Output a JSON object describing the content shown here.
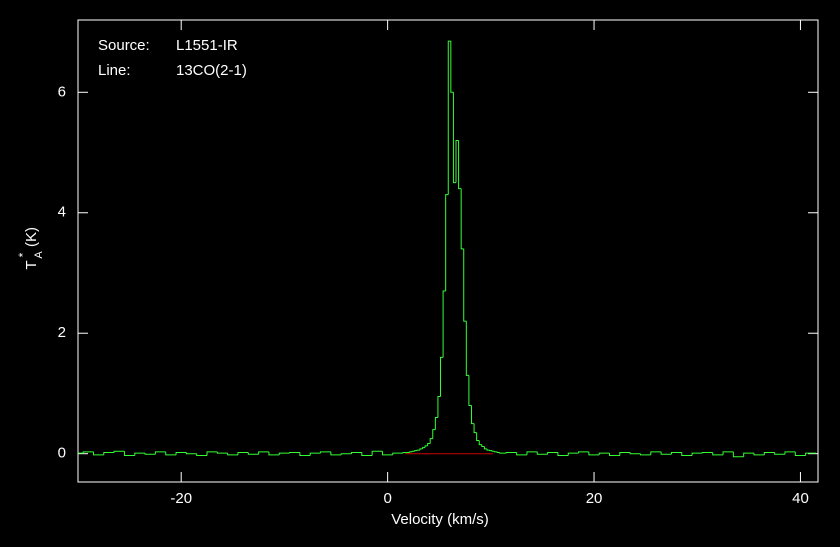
{
  "chart_data": {
    "type": "step",
    "xlabel": "Velocity (km/s)",
    "ylabel": {
      "main": "T",
      "sup": "*",
      "sub": "A",
      "unit": "(K)"
    },
    "annotations": [
      {
        "label": "Source:",
        "value": "L1551-IR"
      },
      {
        "label": "Line:",
        "value": "13CO(2-1)"
      }
    ],
    "xlim": [
      -30,
      41.7
    ],
    "ylim": [
      -0.47,
      7.2
    ],
    "xticks": [
      -20,
      0,
      20,
      40
    ],
    "yticks": [
      0,
      2,
      4,
      6
    ],
    "color": "#33ff33",
    "baseline": {
      "x": [
        1.7,
        10.2
      ],
      "value": 0,
      "color": "#cc0000"
    },
    "x": [
      -30,
      -29,
      -28,
      -27,
      -26,
      -25,
      -24,
      -23,
      -22,
      -21,
      -20,
      -19,
      -18,
      -17,
      -16,
      -15,
      -14,
      -13,
      -12,
      -11,
      -10,
      -9,
      -8,
      -7,
      -6,
      -5,
      -4,
      -3,
      -2,
      -1,
      0,
      1,
      2,
      2.25,
      2.5,
      2.75,
      3,
      3.25,
      3.5,
      3.75,
      4,
      4.25,
      4.5,
      4.75,
      5,
      5.25,
      5.5,
      5.75,
      6,
      6.25,
      6.5,
      6.75,
      7,
      7.25,
      7.5,
      7.75,
      8,
      8.25,
      8.5,
      8.75,
      9,
      9.25,
      9.5,
      9.75,
      10,
      10.25,
      10.5,
      10.75,
      11,
      12,
      13,
      14,
      15,
      16,
      17,
      18,
      19,
      20,
      21,
      22,
      23,
      24,
      25,
      26,
      27,
      28,
      29,
      30,
      31,
      32,
      33,
      34,
      35,
      36,
      37,
      38,
      39,
      40,
      41
    ],
    "values": [
      0.01,
      0.03,
      -0.02,
      0.02,
      0.04,
      -0.03,
      0.01,
      -0.01,
      0.03,
      -0.02,
      0.02,
      0.0,
      -0.03,
      0.03,
      0.01,
      -0.02,
      0.02,
      -0.01,
      0.03,
      -0.02,
      0.01,
      0.02,
      -0.03,
      0.01,
      0.03,
      -0.02,
      0.0,
      0.02,
      -0.03,
      0.04,
      -0.02,
      0.01,
      0.02,
      0.03,
      0.04,
      0.05,
      0.06,
      0.08,
      0.1,
      0.13,
      0.17,
      0.25,
      0.4,
      0.6,
      0.95,
      1.6,
      2.7,
      4.3,
      6.85,
      6.0,
      4.5,
      5.2,
      4.4,
      3.4,
      2.2,
      1.3,
      0.8,
      0.5,
      0.35,
      0.22,
      0.15,
      0.12,
      0.08,
      0.06,
      0.05,
      0.04,
      0.03,
      0.02,
      0.01,
      0.02,
      -0.02,
      0.03,
      -0.01,
      0.02,
      -0.03,
      0.01,
      0.03,
      -0.02,
      0.01,
      -0.03,
      0.02,
      0.0,
      -0.02,
      0.03,
      -0.01,
      0.02,
      -0.03,
      0.01,
      0.02,
      -0.02,
      0.03,
      -0.05,
      0.01,
      -0.02,
      0.02,
      -0.01,
      0.03,
      -0.03,
      0.01
    ]
  }
}
